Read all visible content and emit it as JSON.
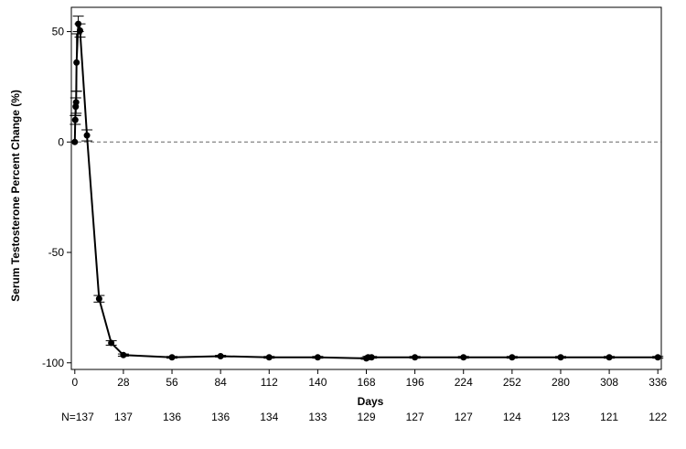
{
  "chart_data": {
    "type": "line",
    "title": "",
    "xlabel": "Days",
    "ylabel": "Serum Testosterone Percent Change (%)",
    "xlim": [
      -2,
      338
    ],
    "ylim": [
      -103,
      61
    ],
    "xticks": [
      0,
      28,
      56,
      84,
      112,
      140,
      168,
      196,
      224,
      252,
      280,
      308,
      336
    ],
    "yticks": [
      50,
      0,
      -50,
      -100
    ],
    "reference_line": {
      "y": 0,
      "style": "dashed"
    },
    "grid": false,
    "error_bars": true,
    "series": [
      {
        "points": [
          {
            "x": 0,
            "y": 0,
            "err": 0
          },
          {
            "x": 0.25,
            "y": 10,
            "err": 2
          },
          {
            "x": 0.5,
            "y": 16,
            "err": 4
          },
          {
            "x": 0.75,
            "y": 18,
            "err": 5
          },
          {
            "x": 1,
            "y": 36,
            "err": 13
          },
          {
            "x": 2,
            "y": 53.5,
            "err": 3.5
          },
          {
            "x": 3,
            "y": 50.5,
            "err": 3
          },
          {
            "x": 7,
            "y": 3,
            "err": 2.5
          },
          {
            "x": 14,
            "y": -71,
            "err": 1.5
          },
          {
            "x": 21,
            "y": -91,
            "err": 1
          },
          {
            "x": 28,
            "y": -96.5,
            "err": 0.5
          },
          {
            "x": 56,
            "y": -97.5,
            "err": 0.4
          },
          {
            "x": 84,
            "y": -97,
            "err": 0.4
          },
          {
            "x": 112,
            "y": -97.5,
            "err": 0.4
          },
          {
            "x": 140,
            "y": -97.5,
            "err": 0.4
          },
          {
            "x": 168,
            "y": -98,
            "err": 0.4
          },
          {
            "x": 169,
            "y": -97.5,
            "err": 0.4
          },
          {
            "x": 171,
            "y": -97.5,
            "err": 0.4
          },
          {
            "x": 196,
            "y": -97.5,
            "err": 0.4
          },
          {
            "x": 224,
            "y": -97.5,
            "err": 0.4
          },
          {
            "x": 252,
            "y": -97.5,
            "err": 0.4
          },
          {
            "x": 280,
            "y": -97.5,
            "err": 0.4
          },
          {
            "x": 308,
            "y": -97.5,
            "err": 0.4
          },
          {
            "x": 336,
            "y": -97.5,
            "err": 0.4
          }
        ]
      }
    ],
    "n_counts": {
      "prefix": "N=",
      "values": [
        "137",
        "137",
        "136",
        "136",
        "134",
        "133",
        "129",
        "127",
        "127",
        "124",
        "123",
        "121",
        "122"
      ]
    }
  }
}
